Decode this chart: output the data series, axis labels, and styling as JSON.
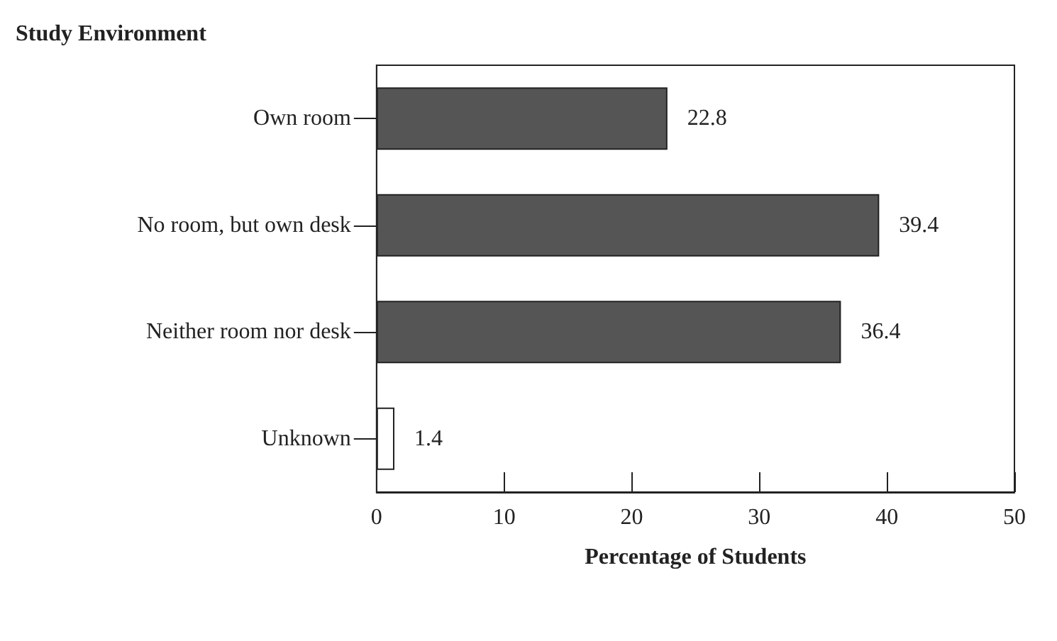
{
  "chart_data": {
    "type": "bar",
    "orientation": "horizontal",
    "ylabel": "Study Environment",
    "xlabel": "Percentage of Students",
    "categories": [
      "Own room",
      "No room, but own desk",
      "Neither room nor desk",
      "Unknown"
    ],
    "values": [
      22.8,
      39.4,
      36.4,
      1.4
    ],
    "colors": [
      "#555555",
      "#555555",
      "#555555",
      "#ffffff"
    ],
    "xlim": [
      0,
      50
    ],
    "xticks": [
      0,
      10,
      20,
      30,
      40,
      50
    ],
    "data_labels": true
  }
}
